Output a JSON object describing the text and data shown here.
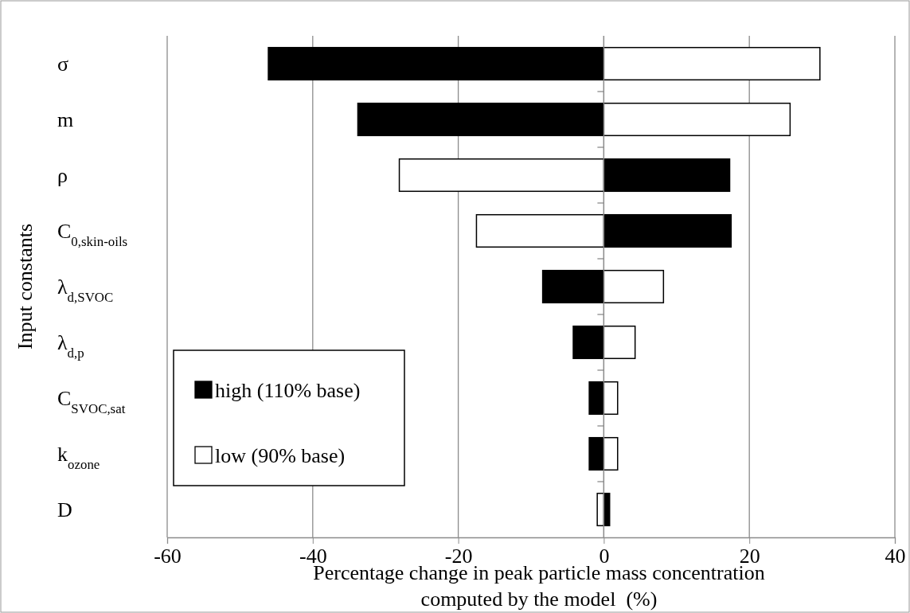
{
  "chart_data": {
    "type": "bar",
    "orientation": "horizontal",
    "stacked": true,
    "xlabel": "Percentage change in peak particle mass concentration computed by the model  (%)",
    "ylabel": "Input constants",
    "categories": [
      "σ",
      "m",
      "ρ",
      "C$_{0,skin-oils}$",
      "λ$_{d,SVOC}$",
      "λ$_{d,p}$",
      "C$_{SVOC,sat}$",
      "k$_{ozone}$",
      "D"
    ],
    "series": [
      {
        "name": "high (110% base)",
        "color": "#000000",
        "values": [
          -46.1,
          -33.8,
          17.3,
          17.5,
          -8.4,
          -4.2,
          -2.0,
          -2.0,
          0.8
        ]
      },
      {
        "name": "low (90% base)",
        "color": "#ffffff",
        "values": [
          29.7,
          25.6,
          -28.1,
          -17.5,
          8.2,
          4.3,
          1.9,
          1.9,
          -0.9
        ]
      }
    ],
    "xlim": [
      -60,
      40
    ],
    "xticks": [
      -60,
      -40,
      -20,
      0,
      20,
      40
    ],
    "grid": "x",
    "legend": "bottom left"
  }
}
